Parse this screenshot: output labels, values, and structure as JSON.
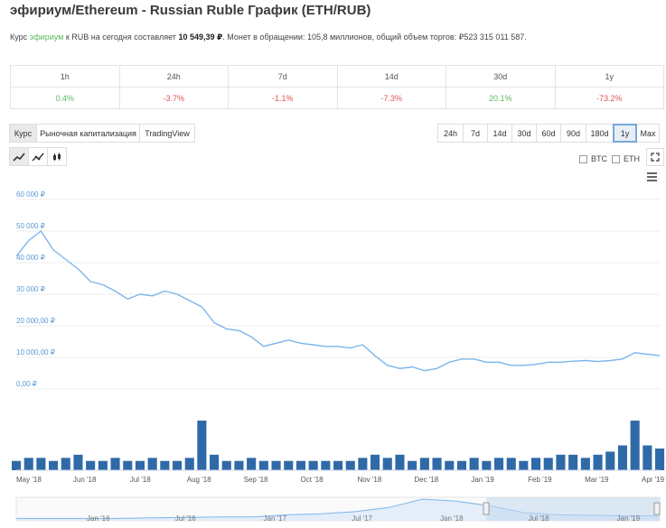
{
  "header": {
    "title": "эфириум/Ethereum - Russian Ruble График (ETH/RUB)",
    "desc_prefix": "Курс",
    "desc_coin": "эфириум",
    "desc_mid": "к RUB на сегодня составляет",
    "desc_price": "10 549,39 ₽",
    "desc_suffix": ". Монет в обращении: 105,8 миллионов, общий объем торгов: ₽523 315 011 587."
  },
  "changes": [
    {
      "period": "1h",
      "value": "0.4%",
      "trend": "pos"
    },
    {
      "period": "24h",
      "value": "-3.7%",
      "trend": "neg"
    },
    {
      "period": "7d",
      "value": "-1.1%",
      "trend": "neg"
    },
    {
      "period": "14d",
      "value": "-7.3%",
      "trend": "neg"
    },
    {
      "period": "30d",
      "value": "20.1%",
      "trend": "pos"
    },
    {
      "period": "1y",
      "value": "-73.2%",
      "trend": "neg"
    }
  ],
  "tabs": [
    "Курс",
    "Рыночная капитализация",
    "TradingView"
  ],
  "ranges": [
    "24h",
    "7d",
    "14d",
    "30d",
    "60d",
    "90d",
    "180d",
    "1y",
    "Max"
  ],
  "active_range": "1y",
  "chart_type_icons": [
    "line-chart-icon",
    "line-markers-icon",
    "candlestick-icon"
  ],
  "compare": [
    "BTC",
    "ETH"
  ],
  "colors": {
    "line": "#7cb5ec",
    "volume": "#2f6aa8",
    "positive": "#5cb85c",
    "negative": "#e05353",
    "nav_band": "#c3d7ee"
  },
  "chart_data": {
    "type": "line",
    "title": "",
    "xlabel": "",
    "ylabel": "",
    "ylim": [
      0,
      60000
    ],
    "y_ticks": [
      "0,00 ₽",
      "10 000,00 ₽",
      "20 000,00 ₽",
      "30 000 ₽",
      "40 000 ₽",
      "50 000 ₽",
      "60 000 ₽"
    ],
    "x_ticks": [
      "May '18",
      "Jun '18",
      "Jul '18",
      "Aug '18",
      "Sep '18",
      "Oct '18",
      "Nov '18",
      "Dec '18",
      "Jan '19",
      "Feb '19",
      "Mar '19",
      "Apr '19"
    ],
    "x": [
      "2018-04-26",
      "2018-05-03",
      "2018-05-10",
      "2018-05-17",
      "2018-05-24",
      "2018-05-31",
      "2018-06-07",
      "2018-06-14",
      "2018-06-21",
      "2018-06-28",
      "2018-07-05",
      "2018-07-12",
      "2018-07-19",
      "2018-07-26",
      "2018-08-02",
      "2018-08-09",
      "2018-08-16",
      "2018-08-23",
      "2018-08-30",
      "2018-09-06",
      "2018-09-13",
      "2018-09-20",
      "2018-09-27",
      "2018-10-04",
      "2018-10-11",
      "2018-10-18",
      "2018-10-25",
      "2018-11-01",
      "2018-11-08",
      "2018-11-15",
      "2018-11-22",
      "2018-11-29",
      "2018-12-06",
      "2018-12-13",
      "2018-12-20",
      "2018-12-27",
      "2019-01-03",
      "2019-01-10",
      "2019-01-17",
      "2019-01-24",
      "2019-01-31",
      "2019-02-07",
      "2019-02-14",
      "2019-02-21",
      "2019-02-28",
      "2019-03-07",
      "2019-03-14",
      "2019-03-21",
      "2019-03-28",
      "2019-04-04",
      "2019-04-11",
      "2019-04-18",
      "2019-04-25"
    ],
    "series": [
      {
        "values": [
          42000,
          47000,
          50000,
          44000,
          41000,
          38000,
          34000,
          33000,
          31000,
          28500,
          30000,
          29500,
          31000,
          30000,
          28000,
          26000,
          21000,
          19000,
          18500,
          16500,
          13500,
          14500,
          15500,
          14500,
          14000,
          13500,
          13500,
          13000,
          14000,
          10500,
          7500,
          6500,
          7000,
          5800,
          6500,
          8500,
          9500,
          9500,
          8500,
          8500,
          7500,
          7500,
          7800,
          8500,
          8500,
          8800,
          9000,
          8700,
          9000,
          9500,
          11500,
          11000,
          10600
        ]
      }
    ],
    "volume": [
      3,
      4,
      4,
      3,
      4,
      5,
      3,
      3,
      4,
      3,
      3,
      4,
      3,
      3,
      4,
      16,
      5,
      3,
      3,
      4,
      3,
      3,
      3,
      3,
      3,
      3,
      3,
      3,
      4,
      5,
      4,
      5,
      3,
      4,
      4,
      3,
      3,
      4,
      3,
      4,
      4,
      3,
      4,
      4,
      5,
      5,
      4,
      5,
      6,
      8,
      16,
      8,
      7
    ],
    "navigator_ticks": [
      "Jan '16",
      "Jul '16",
      "Jan '17",
      "Jul '17",
      "Jan '18",
      "Jul '18",
      "Jan '19"
    ],
    "navigator_values": [
      1,
      1,
      1,
      1,
      2,
      3,
      4,
      4,
      8,
      10,
      14,
      22,
      38,
      34,
      25,
      12,
      8,
      7,
      6,
      6
    ]
  }
}
